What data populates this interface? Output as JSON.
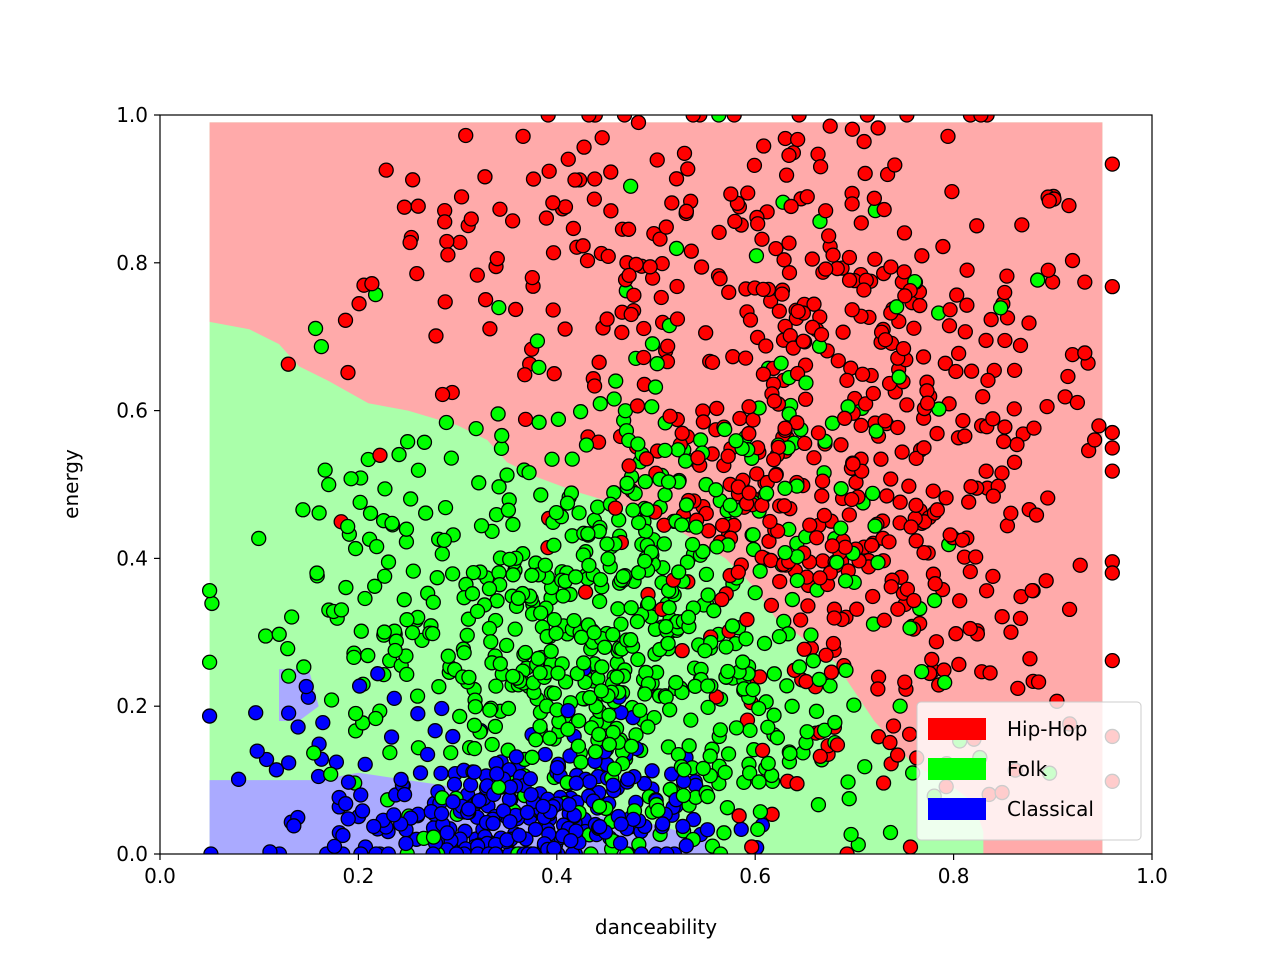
{
  "chart_data": {
    "type": "scatter",
    "title": "",
    "xlabel": "danceability",
    "ylabel": "energy",
    "xlim": [
      0.0,
      1.0
    ],
    "ylim": [
      0.0,
      1.0
    ],
    "xticks": [
      "0.0",
      "0.2",
      "0.4",
      "0.6",
      "0.8",
      "1.0"
    ],
    "yticks": [
      "0.0",
      "0.2",
      "0.4",
      "0.6",
      "0.8",
      "1.0"
    ],
    "grid": false,
    "legend_position": "lower-right",
    "legend": [
      {
        "name": "Hip-Hop",
        "color": "#ff0000"
      },
      {
        "name": "Folk",
        "color": "#00ff00"
      },
      {
        "name": "Classical",
        "color": "#0000ff"
      }
    ],
    "decision_regions": {
      "extent": {
        "x": [
          0.05,
          0.95
        ],
        "y": [
          0.0,
          0.99
        ]
      },
      "colors": {
        "Hip-Hop": "#ffaaaa",
        "Folk": "#aaffaa",
        "Classical": "#aaaaff"
      },
      "hiphop_boundary": [
        [
          0.05,
          0.72
        ],
        [
          0.09,
          0.71
        ],
        [
          0.12,
          0.69
        ],
        [
          0.14,
          0.66
        ],
        [
          0.17,
          0.64
        ],
        [
          0.21,
          0.61
        ],
        [
          0.25,
          0.6
        ],
        [
          0.3,
          0.58
        ],
        [
          0.33,
          0.56
        ],
        [
          0.35,
          0.53
        ],
        [
          0.38,
          0.51
        ],
        [
          0.42,
          0.49
        ],
        [
          0.47,
          0.47
        ],
        [
          0.52,
          0.44
        ],
        [
          0.57,
          0.4
        ],
        [
          0.6,
          0.36
        ],
        [
          0.62,
          0.32
        ],
        [
          0.65,
          0.29
        ],
        [
          0.68,
          0.26
        ],
        [
          0.7,
          0.22
        ],
        [
          0.72,
          0.18
        ],
        [
          0.74,
          0.15
        ],
        [
          0.76,
          0.12
        ],
        [
          0.79,
          0.1
        ],
        [
          0.82,
          0.07
        ],
        [
          0.83,
          0.03
        ],
        [
          0.83,
          0.0
        ]
      ],
      "classical_boundary": [
        [
          0.05,
          0.1
        ],
        [
          0.1,
          0.1
        ],
        [
          0.16,
          0.1
        ],
        [
          0.2,
          0.11
        ],
        [
          0.25,
          0.1
        ],
        [
          0.3,
          0.09
        ],
        [
          0.35,
          0.08
        ],
        [
          0.4,
          0.06
        ],
        [
          0.45,
          0.05
        ],
        [
          0.5,
          0.04
        ],
        [
          0.55,
          0.02
        ],
        [
          0.57,
          0.0
        ]
      ],
      "classical_island": [
        [
          0.12,
          0.18
        ],
        [
          0.12,
          0.25
        ],
        [
          0.15,
          0.25
        ],
        [
          0.16,
          0.2
        ],
        [
          0.14,
          0.18
        ]
      ]
    },
    "series": [
      {
        "name": "Hip-Hop",
        "color": "#ff0000",
        "clusters": [
          {
            "cx": 0.72,
            "cy": 0.62,
            "sx": 0.12,
            "sy": 0.18,
            "n": 320
          },
          {
            "cx": 0.5,
            "cy": 0.78,
            "sx": 0.14,
            "sy": 0.13,
            "n": 130
          },
          {
            "cx": 0.75,
            "cy": 0.3,
            "sx": 0.1,
            "sy": 0.12,
            "n": 110
          },
          {
            "cx": 0.6,
            "cy": 0.45,
            "sx": 0.1,
            "sy": 0.1,
            "n": 80
          },
          {
            "cx": 0.3,
            "cy": 0.85,
            "sx": 0.08,
            "sy": 0.08,
            "n": 25
          }
        ]
      },
      {
        "name": "Folk",
        "color": "#00ff00",
        "clusters": [
          {
            "cx": 0.42,
            "cy": 0.25,
            "sx": 0.1,
            "sy": 0.12,
            "n": 380
          },
          {
            "cx": 0.52,
            "cy": 0.45,
            "sx": 0.1,
            "sy": 0.1,
            "n": 150
          },
          {
            "cx": 0.25,
            "cy": 0.35,
            "sx": 0.08,
            "sy": 0.15,
            "n": 90
          },
          {
            "cx": 0.6,
            "cy": 0.15,
            "sx": 0.1,
            "sy": 0.1,
            "n": 90
          },
          {
            "cx": 0.62,
            "cy": 0.65,
            "sx": 0.12,
            "sy": 0.15,
            "n": 40
          }
        ]
      },
      {
        "name": "Classical",
        "color": "#0000ff",
        "clusters": [
          {
            "cx": 0.35,
            "cy": 0.05,
            "sx": 0.09,
            "sy": 0.04,
            "n": 260
          },
          {
            "cx": 0.22,
            "cy": 0.15,
            "sx": 0.07,
            "sy": 0.07,
            "n": 30
          },
          {
            "cx": 0.42,
            "cy": 0.15,
            "sx": 0.08,
            "sy": 0.08,
            "n": 25
          }
        ]
      }
    ]
  }
}
